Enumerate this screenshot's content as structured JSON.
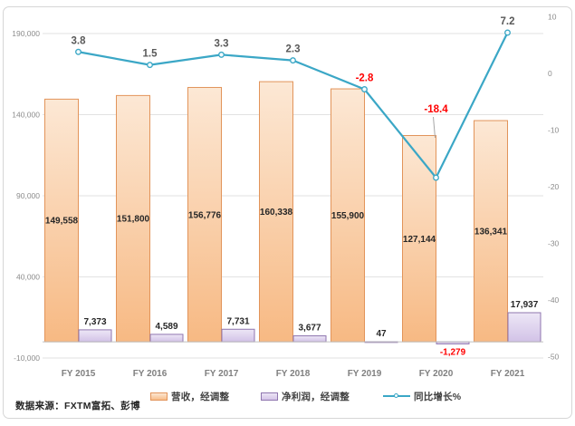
{
  "source_note": "数据来源：FXTM富拓、彭博",
  "colors": {
    "revenue_fill_top": "#FCE8D5",
    "revenue_fill_bottom": "#F7B983",
    "revenue_border": "#E2945A",
    "profit_fill_top": "#EDE7F6",
    "profit_fill_bottom": "#D2C2E7",
    "profit_border": "#8F76AF",
    "growth_line": "#3BA7C6",
    "negative_label": "#FF0000",
    "label_dark": "#262626",
    "line_label_gray": "#595959",
    "axis_gray": "#8C8C8C",
    "category_gray": "#7F7F7F",
    "gridline": "#E2E2E2",
    "zero_axis": "#C0C0C0"
  },
  "chart_data": {
    "type": "combo-bar-line",
    "categories": [
      "FY 2015",
      "FY 2016",
      "FY 2017",
      "FY 2018",
      "FY 2019",
      "FY 2020",
      "FY 2021"
    ],
    "series": [
      {
        "name": "营收，经调整",
        "type": "bar",
        "axis": "left",
        "values": [
          149558,
          151800,
          156776,
          160338,
          155900,
          127144,
          136341
        ],
        "labels": [
          "149,558",
          "151,800",
          "156,776",
          "160,338",
          "155,900",
          "127,144",
          "136,341"
        ]
      },
      {
        "name": "净利润，经调整",
        "type": "bar",
        "axis": "left",
        "values": [
          7373,
          4589,
          7731,
          3677,
          47,
          -1279,
          17937
        ],
        "labels": [
          "7,373",
          "4,589",
          "7,731",
          "3,677",
          "47",
          "-1,279",
          "17,937"
        ]
      },
      {
        "name": "同比增长%",
        "type": "line",
        "axis": "right",
        "values": [
          3.8,
          1.5,
          3.3,
          2.3,
          -2.8,
          -18.4,
          7.2
        ],
        "labels": [
          "3.8",
          "1.5",
          "3.3",
          "2.3",
          "-2.8",
          "-18.4",
          "7.2"
        ]
      }
    ],
    "left_axis": {
      "min": -10000,
      "max": 190000,
      "ticks": [
        190000,
        140000,
        90000,
        40000,
        -10000
      ],
      "tick_labels": [
        "190,000",
        "140,000",
        "90,000",
        "40,000",
        "-10,000"
      ]
    },
    "right_axis": {
      "min": -50,
      "max": 10,
      "ticks": [
        10,
        0,
        -10,
        -20,
        -30,
        -40,
        -50
      ],
      "tick_labels": [
        "10",
        "0",
        "-10",
        "-20",
        "-30",
        "-40",
        "-50"
      ]
    },
    "grid": true,
    "legend_position": "bottom"
  }
}
